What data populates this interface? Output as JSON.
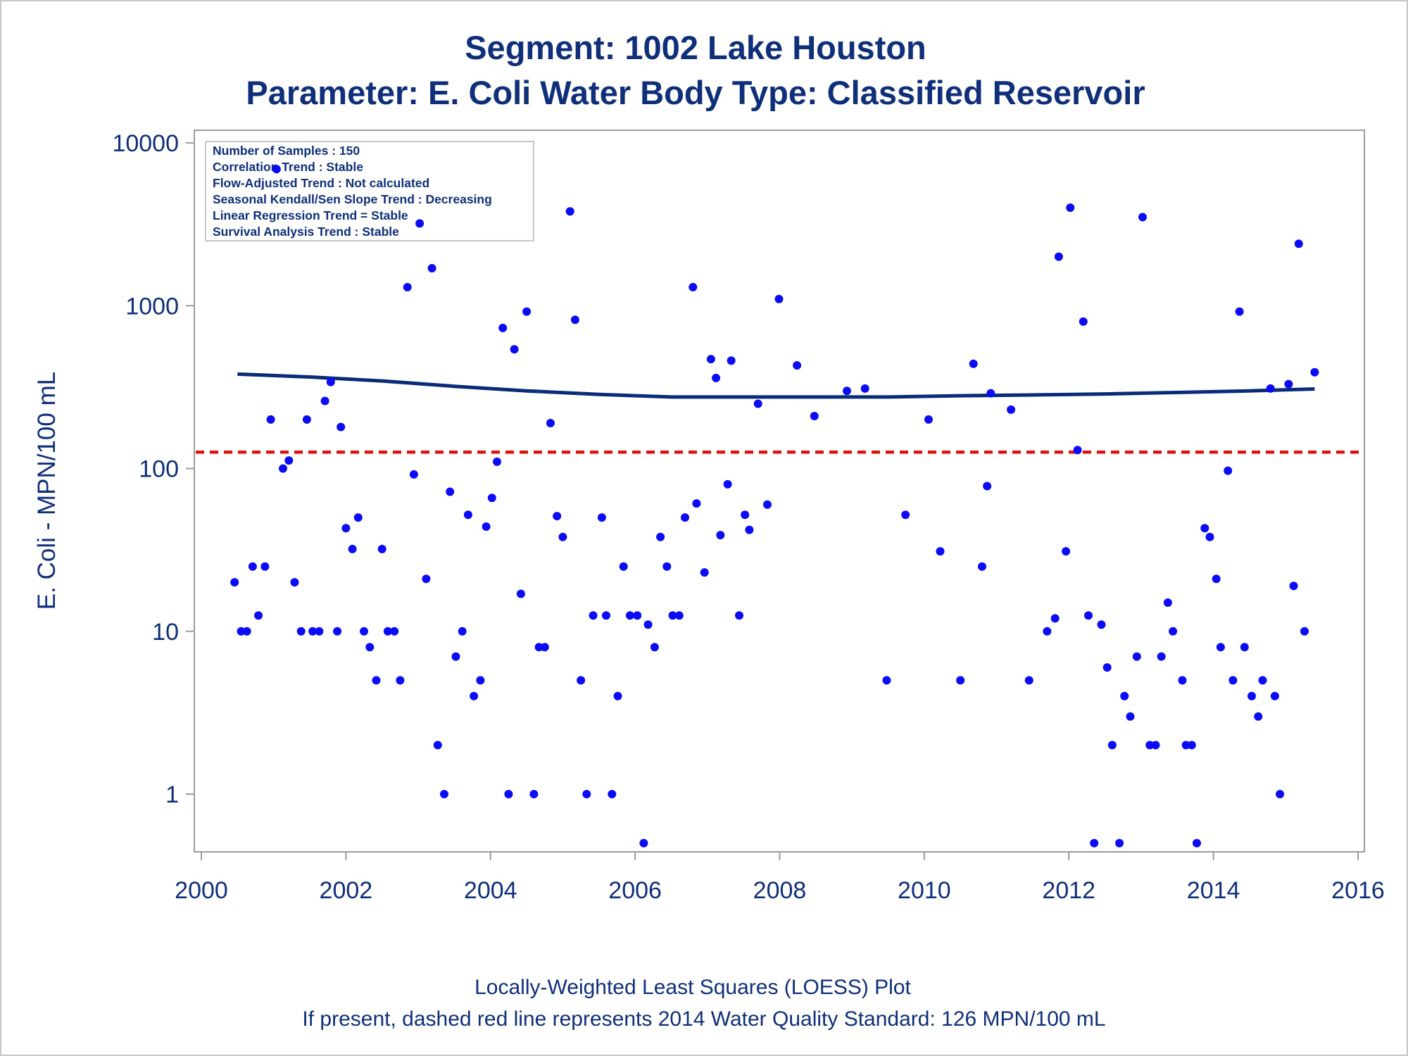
{
  "chart_data": {
    "type": "scatter",
    "title": "Segment: 1002  Lake Houston",
    "subtitle": "Parameter: E. Coli   Water Body Type: Classified Reservoir",
    "xlabel": "",
    "ylabel": "E. Coli - MPN/100 mL",
    "footnotes": [
      "Locally-Weighted Least Squares (LOESS) Plot",
      "If present, dashed red line represents 2014 Water Quality Standard: 126 MPN/100 mL"
    ],
    "x_ticks": [
      "2000",
      "2002",
      "2004",
      "2006",
      "2008",
      "2010",
      "2012",
      "2014",
      "2016"
    ],
    "y_ticks": [
      "1",
      "10",
      "100",
      "1000",
      "10000"
    ],
    "xlim": [
      2000,
      2016.2
    ],
    "ylim": [
      0.5,
      10000
    ],
    "y_scale": "log",
    "grid": false,
    "stats_box": {
      "placement": "top-left",
      "lines": [
        "Number of Samples : 150",
        "Correlation Trend : Stable",
        "Flow-Adjusted Trend : Not calculated",
        "Seasonal Kendall/Sen Slope Trend : Decreasing",
        "Linear Regression Trend = Stable",
        "Survival Analysis Trend : Stable"
      ]
    },
    "standard_line": {
      "value": 126,
      "color": "#dd1111",
      "style": "dashed"
    },
    "loess": {
      "color": "#0a2b78",
      "points": [
        [
          2000.5,
          380
        ],
        [
          2001.5,
          365
        ],
        [
          2002.5,
          345
        ],
        [
          2003.5,
          320
        ],
        [
          2004.5,
          300
        ],
        [
          2005.5,
          285
        ],
        [
          2006.5,
          275
        ],
        [
          2007.5,
          275
        ],
        [
          2008.5,
          275
        ],
        [
          2009.5,
          275
        ],
        [
          2010.5,
          280
        ],
        [
          2011.5,
          283
        ],
        [
          2012.5,
          287
        ],
        [
          2013.5,
          293
        ],
        [
          2014.5,
          300
        ],
        [
          2015.4,
          308
        ]
      ]
    },
    "points_color": "#0b0bf5",
    "points": [
      [
        2000.46,
        20
      ],
      [
        2000.55,
        10
      ],
      [
        2000.63,
        10
      ],
      [
        2000.71,
        25
      ],
      [
        2000.79,
        12.5
      ],
      [
        2000.88,
        25
      ],
      [
        2000.96,
        200
      ],
      [
        2001.04,
        6900
      ],
      [
        2001.13,
        100
      ],
      [
        2001.21,
        112
      ],
      [
        2001.29,
        20
      ],
      [
        2001.38,
        10
      ],
      [
        2001.46,
        200
      ],
      [
        2001.54,
        10
      ],
      [
        2001.63,
        10
      ],
      [
        2001.71,
        260
      ],
      [
        2001.79,
        340
      ],
      [
        2001.88,
        10
      ],
      [
        2001.93,
        180
      ],
      [
        2002.0,
        43
      ],
      [
        2002.09,
        32
      ],
      [
        2002.17,
        50
      ],
      [
        2002.25,
        10
      ],
      [
        2002.33,
        8
      ],
      [
        2002.42,
        5
      ],
      [
        2002.5,
        32
      ],
      [
        2002.58,
        10
      ],
      [
        2002.67,
        10
      ],
      [
        2002.75,
        5
      ],
      [
        2002.85,
        1300
      ],
      [
        2002.94,
        92
      ],
      [
        2003.02,
        3200
      ],
      [
        2003.11,
        21
      ],
      [
        2003.19,
        1700
      ],
      [
        2003.27,
        2
      ],
      [
        2003.36,
        1
      ],
      [
        2003.44,
        72
      ],
      [
        2003.52,
        7
      ],
      [
        2003.61,
        10
      ],
      [
        2003.69,
        52
      ],
      [
        2003.77,
        4
      ],
      [
        2003.86,
        5
      ],
      [
        2003.94,
        44
      ],
      [
        2004.02,
        66
      ],
      [
        2004.09,
        110
      ],
      [
        2004.17,
        730
      ],
      [
        2004.25,
        1
      ],
      [
        2004.33,
        540
      ],
      [
        2004.42,
        17
      ],
      [
        2004.5,
        920
      ],
      [
        2004.6,
        1
      ],
      [
        2004.67,
        8
      ],
      [
        2004.75,
        8
      ],
      [
        2004.83,
        190
      ],
      [
        2004.92,
        51
      ],
      [
        2005.0,
        38
      ],
      [
        2005.1,
        3800
      ],
      [
        2005.17,
        820
      ],
      [
        2005.25,
        5
      ],
      [
        2005.33,
        1
      ],
      [
        2005.42,
        12.5
      ],
      [
        2005.54,
        50
      ],
      [
        2005.6,
        12.5
      ],
      [
        2005.68,
        1
      ],
      [
        2005.76,
        4
      ],
      [
        2005.84,
        25
      ],
      [
        2005.93,
        12.5
      ],
      [
        2006.03,
        12.5
      ],
      [
        2006.12,
        0.5
      ],
      [
        2006.18,
        11
      ],
      [
        2006.27,
        8
      ],
      [
        2006.35,
        38
      ],
      [
        2006.44,
        25
      ],
      [
        2006.52,
        12.5
      ],
      [
        2006.61,
        12.5
      ],
      [
        2006.69,
        50
      ],
      [
        2006.8,
        1300
      ],
      [
        2006.85,
        61
      ],
      [
        2006.96,
        23
      ],
      [
        2007.05,
        470
      ],
      [
        2007.12,
        360
      ],
      [
        2007.18,
        39
      ],
      [
        2007.28,
        80
      ],
      [
        2007.33,
        460
      ],
      [
        2007.44,
        12.5
      ],
      [
        2007.52,
        52
      ],
      [
        2007.58,
        42
      ],
      [
        2007.7,
        250
      ],
      [
        2007.83,
        60
      ],
      [
        2007.99,
        1100
      ],
      [
        2008.24,
        430
      ],
      [
        2008.48,
        210
      ],
      [
        2008.93,
        300
      ],
      [
        2009.18,
        310
      ],
      [
        2009.48,
        5
      ],
      [
        2009.74,
        52
      ],
      [
        2010.06,
        200
      ],
      [
        2010.22,
        31
      ],
      [
        2010.5,
        5
      ],
      [
        2010.68,
        440
      ],
      [
        2010.8,
        25
      ],
      [
        2010.87,
        78
      ],
      [
        2010.92,
        290
      ],
      [
        2011.2,
        230
      ],
      [
        2011.45,
        5
      ],
      [
        2011.7,
        10
      ],
      [
        2011.81,
        12
      ],
      [
        2011.86,
        2000
      ],
      [
        2011.96,
        31
      ],
      [
        2012.02,
        4000
      ],
      [
        2012.12,
        130
      ],
      [
        2012.2,
        800
      ],
      [
        2012.27,
        12.5
      ],
      [
        2012.35,
        0.5
      ],
      [
        2012.45,
        11
      ],
      [
        2012.53,
        6
      ],
      [
        2012.6,
        2
      ],
      [
        2012.7,
        0.5
      ],
      [
        2012.77,
        4
      ],
      [
        2012.85,
        3
      ],
      [
        2012.94,
        7
      ],
      [
        2013.02,
        3500
      ],
      [
        2013.12,
        2
      ],
      [
        2013.2,
        2
      ],
      [
        2013.28,
        7
      ],
      [
        2013.37,
        15
      ],
      [
        2013.44,
        10
      ],
      [
        2013.57,
        5
      ],
      [
        2013.62,
        2
      ],
      [
        2013.7,
        2
      ],
      [
        2013.77,
        0.5
      ],
      [
        2013.88,
        43
      ],
      [
        2013.95,
        38
      ],
      [
        2014.04,
        21
      ],
      [
        2014.1,
        8
      ],
      [
        2014.2,
        97
      ],
      [
        2014.27,
        5
      ],
      [
        2014.36,
        920
      ],
      [
        2014.43,
        8
      ],
      [
        2014.53,
        4
      ],
      [
        2014.62,
        3
      ],
      [
        2014.68,
        5
      ],
      [
        2014.79,
        310
      ],
      [
        2014.85,
        4
      ],
      [
        2014.92,
        1
      ],
      [
        2015.04,
        330
      ],
      [
        2015.11,
        19
      ],
      [
        2015.18,
        2400
      ],
      [
        2015.26,
        10
      ],
      [
        2015.4,
        390
      ]
    ]
  }
}
